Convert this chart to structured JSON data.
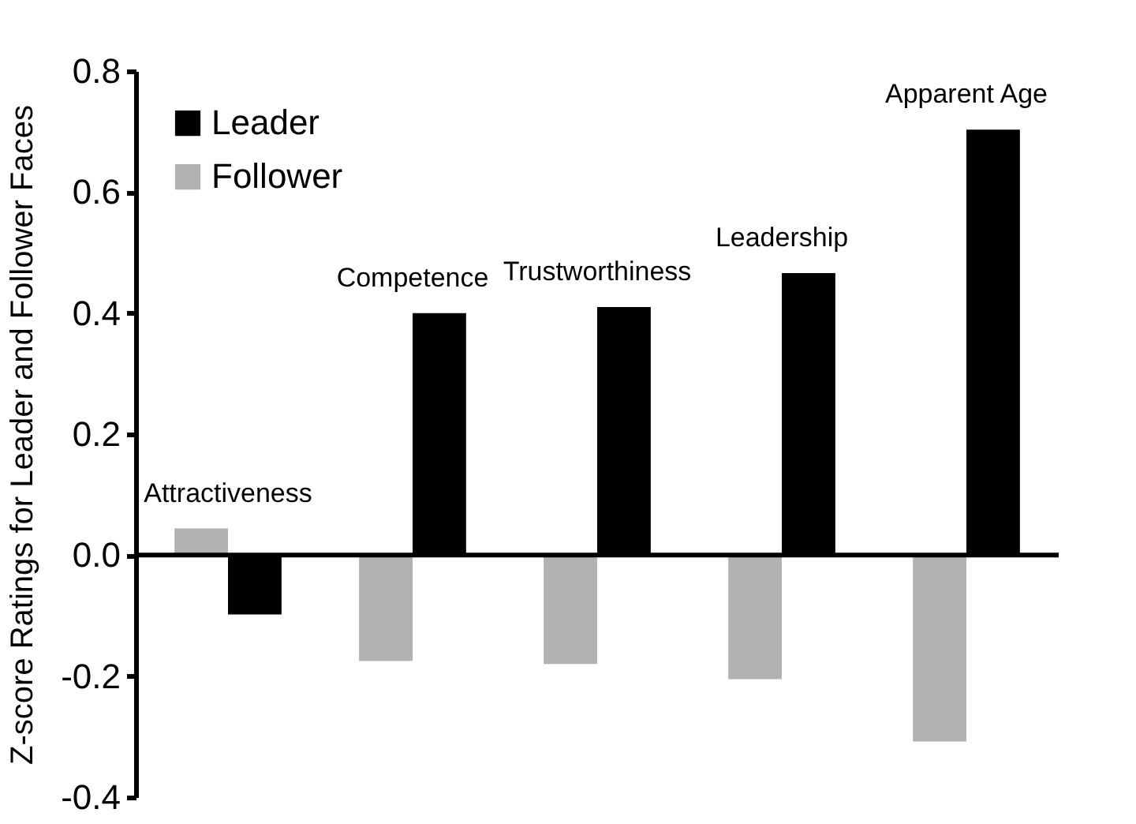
{
  "chart_data": {
    "type": "bar",
    "ylabel": "Z-score Ratings for Leader and Follower Faces",
    "categories": [
      "Attractiveness",
      "Competence",
      "Trustworthiness",
      "Leadership",
      "Apparent Age"
    ],
    "series": [
      {
        "name": "Leader",
        "color": "#000000",
        "values": [
          -0.098,
          0.4,
          0.41,
          0.466,
          0.703
        ]
      },
      {
        "name": "Follower",
        "color": "#b2b2b2",
        "values": [
          0.044,
          -0.175,
          -0.18,
          -0.205,
          -0.308
        ]
      }
    ],
    "ylim": [
      -0.4,
      0.8
    ],
    "yticks": [
      {
        "value": -0.4,
        "label": "-0.4"
      },
      {
        "value": -0.2,
        "label": "-0.2"
      },
      {
        "value": 0,
        "label": "0.0"
      },
      {
        "value": 0.2,
        "label": "0.2"
      },
      {
        "value": 0.4,
        "label": "0.4"
      },
      {
        "value": 0.6,
        "label": "0.6"
      },
      {
        "value": 0.8,
        "label": "0.8"
      }
    ],
    "ref_lines": [
      {
        "axis": "y",
        "value": 0,
        "color": "#000000"
      }
    ],
    "grid": false,
    "legend": "top left"
  }
}
